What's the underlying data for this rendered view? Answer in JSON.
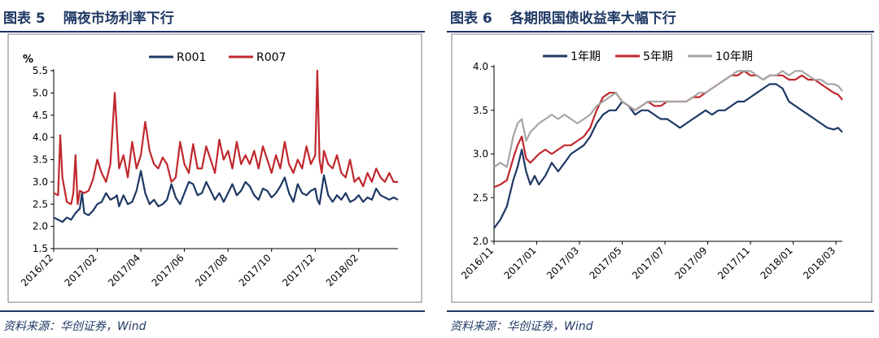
{
  "left": {
    "title_prefix": "图表 5",
    "title_text": "隔夜市场利率下行",
    "source": "资料来源：华创证券，Wind"
  },
  "right": {
    "title_prefix": "图表 6",
    "title_text": "各期限国债收益率大幅下行",
    "source": "资料来源：华创证券，Wind"
  },
  "chart_data": [
    {
      "type": "line",
      "title": "隔夜市场利率下行",
      "ylabel": "%",
      "ylim": [
        1.5,
        5.5
      ],
      "yticks": [
        "1.5",
        "2.0",
        "2.5",
        "3.0",
        "3.5",
        "4.0",
        "4.5",
        "5.0",
        "5.5"
      ],
      "xlim": [
        0,
        15.8
      ],
      "xticks": [
        {
          "label": "2016/12",
          "x": 0
        },
        {
          "label": "2017/02",
          "x": 2
        },
        {
          "label": "2017/04",
          "x": 4
        },
        {
          "label": "2017/06",
          "x": 6
        },
        {
          "label": "2017/08",
          "x": 8
        },
        {
          "label": "2017/10",
          "x": 10
        },
        {
          "label": "2017/12",
          "x": 12
        },
        {
          "label": "2018/02",
          "x": 14
        }
      ],
      "series": [
        {
          "name": "R001",
          "color": "#1f3864",
          "x": [
            0,
            0.2,
            0.4,
            0.6,
            0.8,
            1.0,
            1.2,
            1.3,
            1.4,
            1.6,
            1.8,
            2.0,
            2.2,
            2.4,
            2.6,
            2.8,
            2.9,
            3.0,
            3.2,
            3.4,
            3.6,
            3.8,
            4.0,
            4.2,
            4.4,
            4.6,
            4.8,
            5.0,
            5.2,
            5.4,
            5.6,
            5.8,
            6.0,
            6.2,
            6.4,
            6.6,
            6.8,
            7.0,
            7.2,
            7.4,
            7.6,
            7.8,
            8.0,
            8.2,
            8.4,
            8.6,
            8.8,
            9.0,
            9.2,
            9.4,
            9.6,
            9.8,
            10.0,
            10.2,
            10.4,
            10.6,
            10.8,
            11.0,
            11.2,
            11.4,
            11.6,
            11.8,
            12.0,
            12.1,
            12.2,
            12.4,
            12.6,
            12.8,
            13.0,
            13.2,
            13.4,
            13.6,
            13.8,
            14.0,
            14.2,
            14.4,
            14.6,
            14.8,
            15.0,
            15.2,
            15.4,
            15.6,
            15.8
          ],
          "values": [
            2.2,
            2.15,
            2.1,
            2.2,
            2.15,
            2.3,
            2.4,
            2.75,
            2.3,
            2.25,
            2.35,
            2.5,
            2.55,
            2.75,
            2.6,
            2.65,
            2.7,
            2.45,
            2.7,
            2.5,
            2.55,
            2.8,
            3.25,
            2.75,
            2.5,
            2.6,
            2.45,
            2.5,
            2.6,
            2.95,
            2.65,
            2.5,
            2.75,
            3.0,
            2.95,
            2.7,
            2.75,
            3.0,
            2.8,
            2.6,
            2.75,
            2.55,
            2.75,
            2.95,
            2.7,
            2.8,
            3.0,
            2.9,
            2.7,
            2.6,
            2.85,
            2.8,
            2.65,
            2.75,
            2.9,
            3.1,
            2.75,
            2.55,
            2.95,
            2.75,
            2.7,
            2.8,
            2.85,
            2.6,
            2.5,
            3.15,
            2.7,
            2.55,
            2.7,
            2.6,
            2.75,
            2.55,
            2.6,
            2.7,
            2.55,
            2.65,
            2.6,
            2.85,
            2.7,
            2.65,
            2.6,
            2.65,
            2.6
          ]
        },
        {
          "name": "R007",
          "color": "#c0282d",
          "x": [
            0,
            0.2,
            0.3,
            0.4,
            0.6,
            0.8,
            0.9,
            1.0,
            1.1,
            1.2,
            1.4,
            1.6,
            1.8,
            2.0,
            2.2,
            2.4,
            2.6,
            2.8,
            3.0,
            3.2,
            3.4,
            3.6,
            3.8,
            4.0,
            4.2,
            4.4,
            4.6,
            4.8,
            5.0,
            5.2,
            5.4,
            5.6,
            5.8,
            6.0,
            6.2,
            6.4,
            6.6,
            6.8,
            7.0,
            7.2,
            7.4,
            7.6,
            7.8,
            8.0,
            8.2,
            8.4,
            8.6,
            8.8,
            9.0,
            9.2,
            9.4,
            9.6,
            9.8,
            10.0,
            10.2,
            10.4,
            10.6,
            10.8,
            11.0,
            11.2,
            11.4,
            11.6,
            11.8,
            12.0,
            12.1,
            12.2,
            12.3,
            12.4,
            12.6,
            12.8,
            13.0,
            13.2,
            13.4,
            13.6,
            13.8,
            14.0,
            14.2,
            14.4,
            14.6,
            14.8,
            15.0,
            15.2,
            15.4,
            15.6,
            15.8
          ],
          "values": [
            2.75,
            2.7,
            4.05,
            3.1,
            2.55,
            2.5,
            2.75,
            3.6,
            2.5,
            2.8,
            2.75,
            2.8,
            3.05,
            3.5,
            3.2,
            3.0,
            3.4,
            5.0,
            3.3,
            3.6,
            3.1,
            3.9,
            3.3,
            3.6,
            4.35,
            3.7,
            3.4,
            3.3,
            3.55,
            3.4,
            3.0,
            3.1,
            3.9,
            3.4,
            3.2,
            3.85,
            3.3,
            3.3,
            3.8,
            3.5,
            3.2,
            3.95,
            3.5,
            3.7,
            3.3,
            3.9,
            3.4,
            3.6,
            3.4,
            3.7,
            3.3,
            3.8,
            3.5,
            3.2,
            3.6,
            3.3,
            3.9,
            3.4,
            3.2,
            3.5,
            3.3,
            3.8,
            3.4,
            3.6,
            5.5,
            3.5,
            3.2,
            3.7,
            3.4,
            3.3,
            3.6,
            3.2,
            3.1,
            3.5,
            3.0,
            3.1,
            2.9,
            3.2,
            3.0,
            3.3,
            3.1,
            3.0,
            3.2,
            3.0,
            3.0
          ]
        }
      ]
    },
    {
      "type": "line",
      "title": "各期限国债收益率大幅下行",
      "ylim": [
        2.0,
        4.0
      ],
      "yticks": [
        "2.0",
        "2.5",
        "3.0",
        "3.5",
        "4.0"
      ],
      "xlim": [
        0,
        16.3
      ],
      "xticks": [
        {
          "label": "2016/11",
          "x": 0
        },
        {
          "label": "2017/01",
          "x": 2
        },
        {
          "label": "2017/03",
          "x": 4
        },
        {
          "label": "2017/05",
          "x": 6
        },
        {
          "label": "2017/07",
          "x": 8
        },
        {
          "label": "2017/09",
          "x": 10
        },
        {
          "label": "2017/11",
          "x": 12
        },
        {
          "label": "2018/01",
          "x": 14
        },
        {
          "label": "2018/03",
          "x": 16
        }
      ],
      "series": [
        {
          "name": "1年期",
          "color": "#1f3864",
          "x": [
            0,
            0.3,
            0.6,
            0.9,
            1.1,
            1.3,
            1.5,
            1.7,
            1.9,
            2.1,
            2.4,
            2.7,
            3.0,
            3.3,
            3.6,
            3.9,
            4.2,
            4.5,
            4.8,
            5.1,
            5.4,
            5.7,
            6.0,
            6.3,
            6.6,
            6.9,
            7.2,
            7.5,
            7.8,
            8.1,
            8.4,
            8.7,
            9.0,
            9.3,
            9.6,
            9.9,
            10.2,
            10.5,
            10.8,
            11.1,
            11.4,
            11.7,
            12.0,
            12.3,
            12.6,
            12.9,
            13.2,
            13.5,
            13.8,
            14.1,
            14.4,
            14.7,
            15.0,
            15.3,
            15.6,
            15.9,
            16.1,
            16.3
          ],
          "values": [
            2.15,
            2.25,
            2.4,
            2.7,
            2.85,
            3.05,
            2.8,
            2.65,
            2.75,
            2.65,
            2.75,
            2.9,
            2.8,
            2.9,
            3.0,
            3.05,
            3.1,
            3.2,
            3.35,
            3.45,
            3.5,
            3.5,
            3.6,
            3.55,
            3.45,
            3.5,
            3.5,
            3.45,
            3.4,
            3.4,
            3.35,
            3.3,
            3.35,
            3.4,
            3.45,
            3.5,
            3.45,
            3.5,
            3.5,
            3.55,
            3.6,
            3.6,
            3.65,
            3.7,
            3.75,
            3.8,
            3.8,
            3.75,
            3.6,
            3.55,
            3.5,
            3.45,
            3.4,
            3.35,
            3.3,
            3.28,
            3.3,
            3.25
          ]
        },
        {
          "name": "5年期",
          "color": "#c0282d",
          "x": [
            0,
            0.3,
            0.6,
            0.9,
            1.1,
            1.3,
            1.5,
            1.7,
            1.9,
            2.1,
            2.4,
            2.7,
            3.0,
            3.3,
            3.6,
            3.9,
            4.2,
            4.5,
            4.8,
            5.1,
            5.4,
            5.7,
            6.0,
            6.3,
            6.6,
            6.9,
            7.2,
            7.5,
            7.8,
            8.1,
            8.4,
            8.7,
            9.0,
            9.3,
            9.6,
            9.9,
            10.2,
            10.5,
            10.8,
            11.1,
            11.4,
            11.7,
            12.0,
            12.3,
            12.6,
            12.9,
            13.2,
            13.5,
            13.8,
            14.1,
            14.4,
            14.7,
            15.0,
            15.3,
            15.6,
            15.9,
            16.1,
            16.3
          ],
          "values": [
            2.62,
            2.65,
            2.7,
            2.95,
            3.1,
            3.2,
            2.95,
            2.9,
            2.95,
            3.0,
            3.05,
            3.0,
            3.05,
            3.1,
            3.1,
            3.15,
            3.2,
            3.3,
            3.5,
            3.65,
            3.7,
            3.7,
            3.6,
            3.55,
            3.5,
            3.55,
            3.6,
            3.55,
            3.55,
            3.6,
            3.6,
            3.6,
            3.6,
            3.65,
            3.65,
            3.7,
            3.75,
            3.8,
            3.85,
            3.9,
            3.9,
            3.95,
            3.9,
            3.9,
            3.85,
            3.9,
            3.9,
            3.9,
            3.85,
            3.85,
            3.9,
            3.85,
            3.85,
            3.8,
            3.75,
            3.7,
            3.68,
            3.62
          ]
        },
        {
          "name": "10年期",
          "color": "#a6a6a6",
          "x": [
            0,
            0.3,
            0.6,
            0.9,
            1.1,
            1.3,
            1.5,
            1.7,
            1.9,
            2.1,
            2.4,
            2.7,
            3.0,
            3.3,
            3.6,
            3.9,
            4.2,
            4.5,
            4.8,
            5.1,
            5.4,
            5.7,
            6.0,
            6.3,
            6.6,
            6.9,
            7.2,
            7.5,
            7.8,
            8.1,
            8.4,
            8.7,
            9.0,
            9.3,
            9.6,
            9.9,
            10.2,
            10.5,
            10.8,
            11.1,
            11.4,
            11.7,
            12.0,
            12.3,
            12.6,
            12.9,
            13.2,
            13.5,
            13.8,
            14.1,
            14.4,
            14.7,
            15.0,
            15.3,
            15.6,
            15.9,
            16.1,
            16.3
          ],
          "values": [
            2.85,
            2.9,
            2.85,
            3.2,
            3.35,
            3.4,
            3.15,
            3.25,
            3.3,
            3.35,
            3.4,
            3.45,
            3.4,
            3.45,
            3.4,
            3.35,
            3.4,
            3.45,
            3.55,
            3.6,
            3.65,
            3.7,
            3.6,
            3.55,
            3.5,
            3.55,
            3.6,
            3.6,
            3.6,
            3.6,
            3.6,
            3.6,
            3.6,
            3.65,
            3.7,
            3.7,
            3.75,
            3.8,
            3.85,
            3.9,
            3.95,
            3.95,
            3.95,
            3.9,
            3.85,
            3.9,
            3.9,
            3.95,
            3.9,
            3.95,
            3.95,
            3.9,
            3.85,
            3.85,
            3.8,
            3.8,
            3.78,
            3.72
          ]
        }
      ]
    }
  ]
}
